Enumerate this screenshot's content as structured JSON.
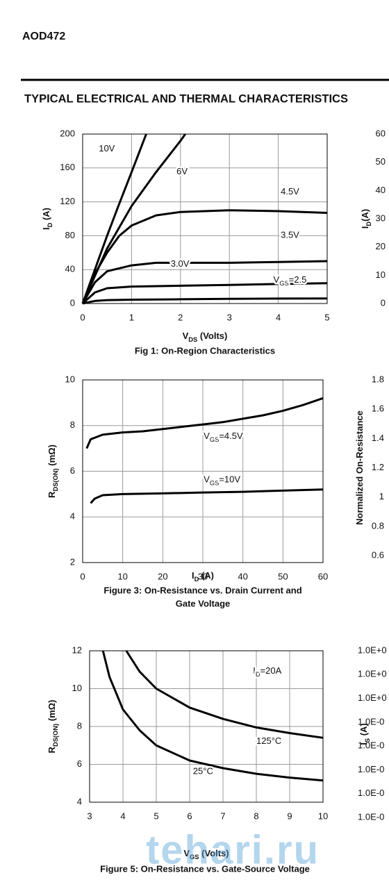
{
  "header": {
    "part": "AOD472",
    "section": "TYPICAL ELECTRICAL AND THERMAL CHARACTERISTICS"
  },
  "chart_data": [
    {
      "type": "line",
      "title": "Fig 1: On-Region Characteristics",
      "xlabel": [
        "V",
        "DS",
        " (Volts)"
      ],
      "ylabel": [
        "I",
        "D",
        " (A)"
      ],
      "xlim": [
        0,
        5
      ],
      "ylim": [
        0,
        200
      ],
      "xticks": [
        0,
        1,
        2,
        3,
        4,
        5
      ],
      "yticks": [
        0,
        40,
        80,
        120,
        160,
        200
      ],
      "grid": true,
      "series": [
        {
          "name": [
            "10V"
          ],
          "color": "#000000",
          "x": [
            0,
            0.25,
            0.5,
            0.75,
            1,
            1.3
          ],
          "values": [
            0,
            40,
            80,
            118,
            155,
            200
          ]
        },
        {
          "name": [
            "6V"
          ],
          "color": "#000000",
          "x": [
            0,
            0.5,
            1,
            1.5,
            2,
            2.1
          ],
          "values": [
            0,
            65,
            115,
            155,
            192,
            200
          ]
        },
        {
          "name": [
            "4.5V"
          ],
          "color": "#000000",
          "x": [
            0,
            0.25,
            0.5,
            0.75,
            1,
            1.5,
            2,
            3,
            4,
            5
          ],
          "values": [
            0,
            35,
            60,
            80,
            92,
            104,
            108,
            110,
            109,
            107
          ]
        },
        {
          "name": [
            "3.5V"
          ],
          "color": "#000000",
          "x": [
            0,
            0.25,
            0.5,
            1,
            1.5,
            2,
            3,
            4,
            5
          ],
          "values": [
            0,
            25,
            38,
            45,
            48,
            48,
            48,
            49,
            50
          ]
        },
        {
          "name": [
            "3.0V"
          ],
          "color": "#000000",
          "x": [
            0,
            0.25,
            0.5,
            1,
            2,
            3,
            4,
            5
          ],
          "values": [
            0,
            13,
            18,
            20,
            21,
            22,
            23,
            24
          ]
        },
        {
          "name": [
            "V",
            "GS",
            "=2.5"
          ],
          "color": "#000000",
          "x": [
            0,
            0.25,
            0.5,
            1,
            2,
            3,
            4,
            5
          ],
          "values": [
            0,
            3,
            4,
            4.5,
            5,
            5.5,
            5.8,
            6
          ]
        }
      ]
    },
    {
      "type": "line",
      "title": [
        "Figure 3: On-Resistance vs. Drain Current and",
        "Gate Voltage"
      ],
      "xlabel": [
        "I",
        "D",
        " (A)"
      ],
      "ylabel": [
        "R",
        "DS(ON)",
        " (mΩ)"
      ],
      "xlim": [
        0,
        60
      ],
      "ylim": [
        2,
        10
      ],
      "xticks": [
        0,
        10,
        20,
        30,
        40,
        50,
        60
      ],
      "yticks": [
        2,
        4,
        6,
        8,
        10
      ],
      "grid": true,
      "series": [
        {
          "name": [
            "V",
            "GS",
            "=4.5V"
          ],
          "color": "#000000",
          "x": [
            1,
            2,
            5,
            10,
            15,
            20,
            25,
            30,
            35,
            40,
            45,
            50,
            55,
            60
          ],
          "values": [
            7.0,
            7.4,
            7.6,
            7.7,
            7.75,
            7.85,
            7.95,
            8.05,
            8.15,
            8.3,
            8.45,
            8.65,
            8.9,
            9.2
          ]
        },
        {
          "name": [
            "V",
            "GS",
            "=10V"
          ],
          "color": "#000000",
          "x": [
            2,
            3,
            5,
            10,
            20,
            30,
            40,
            50,
            60
          ],
          "values": [
            4.6,
            4.8,
            4.95,
            5.0,
            5.03,
            5.07,
            5.1,
            5.15,
            5.2
          ]
        }
      ]
    },
    {
      "type": "line",
      "title": "Figure 5: On-Resistance vs. Gate-Source Voltage",
      "xlabel": [
        "V",
        "GS",
        " (Volts)"
      ],
      "ylabel": [
        "R",
        "DS(ON)",
        " (mΩ)"
      ],
      "xlim": [
        3,
        10
      ],
      "ylim": [
        4,
        12
      ],
      "xticks": [
        3,
        4,
        5,
        6,
        7,
        8,
        9,
        10
      ],
      "yticks": [
        4,
        6,
        8,
        10,
        12
      ],
      "grid": true,
      "annotations": [
        [
          "I",
          "D",
          "=20A"
        ]
      ],
      "series": [
        {
          "name": [
            "125°C"
          ],
          "color": "#000000",
          "x": [
            4.1,
            4.5,
            5,
            6,
            7,
            8,
            9,
            10
          ],
          "values": [
            12,
            10.9,
            10.0,
            9.0,
            8.4,
            7.95,
            7.65,
            7.4
          ]
        },
        {
          "name": [
            "25°C"
          ],
          "color": "#000000",
          "x": [
            3.4,
            3.6,
            4,
            4.5,
            5,
            6,
            7,
            8,
            9,
            10
          ],
          "values": [
            12,
            10.6,
            8.9,
            7.8,
            7.0,
            6.2,
            5.8,
            5.5,
            5.3,
            5.15
          ]
        }
      ]
    }
  ],
  "partial": [
    {
      "ylabel": [
        "I",
        "D",
        "(A)"
      ],
      "ticks": [
        "60",
        "50",
        "40",
        "30",
        "20",
        "10",
        "0"
      ]
    },
    {
      "ylabel": [
        "Normalized On-Resistance"
      ],
      "ticks": [
        "1.8",
        "1.6",
        "1.4",
        "1.2",
        "1",
        "0.8",
        "0.6"
      ]
    },
    {
      "ylabel": [
        "I",
        "S",
        " (A)"
      ],
      "ticks": [
        "1.0E+0",
        "1.0E+0",
        "1.0E+0",
        "1.0E-0",
        "1.0E-0",
        "1.0E-0",
        "1.0E-0",
        "1.0E-0"
      ]
    }
  ],
  "watermark": "tehari.ru"
}
